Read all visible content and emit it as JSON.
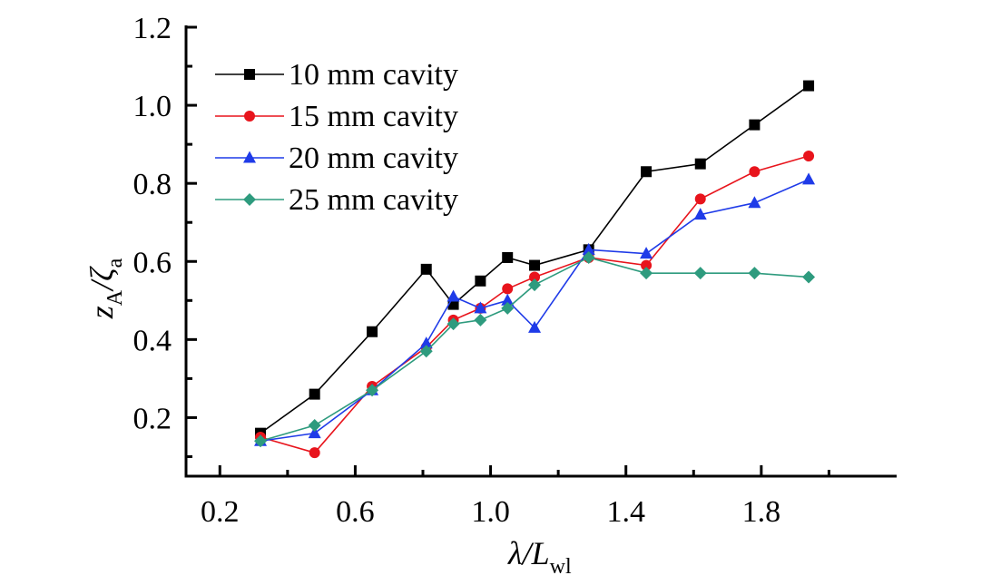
{
  "chart_data": {
    "type": "line",
    "xlabel": "λ/L_wl",
    "ylabel": "z_A/ζ_a",
    "xlabel_parts": {
      "main": "λ/L",
      "sub": "wl"
    },
    "ylabel_parts": {
      "main1": "z",
      "sub1": "A",
      "main2": "/ζ",
      "sub2": "a"
    },
    "xlim": [
      0.1,
      2.2
    ],
    "ylim": [
      0.05,
      1.2
    ],
    "xticks": [
      0.2,
      0.6,
      1.0,
      1.4,
      1.8
    ],
    "xtick_labels": [
      "0.2",
      "0.6",
      "1.0",
      "1.4",
      "1.8"
    ],
    "xminor": [
      0.4,
      0.8,
      1.2,
      1.6,
      2.0
    ],
    "yticks": [
      0.2,
      0.4,
      0.6,
      0.8,
      1.0,
      1.2
    ],
    "ytick_labels": [
      "0.2",
      "0.4",
      "0.6",
      "0.8",
      "1.0",
      "1.2"
    ],
    "yminor": [
      0.1,
      0.3,
      0.5,
      0.7,
      0.9,
      1.1
    ],
    "grid": false,
    "legend_position": "top-left",
    "series": [
      {
        "name": "10 mm cavity",
        "color": "#000000",
        "marker": "square",
        "x": [
          0.32,
          0.48,
          0.65,
          0.81,
          0.89,
          0.97,
          1.05,
          1.13,
          1.29,
          1.46,
          1.62,
          1.78,
          1.94
        ],
        "y": [
          0.16,
          0.26,
          0.42,
          0.58,
          0.49,
          0.55,
          0.61,
          0.59,
          0.63,
          0.83,
          0.85,
          0.95,
          1.05
        ]
      },
      {
        "name": "15 mm cavity",
        "color": "#e8141c",
        "marker": "circle",
        "x": [
          0.32,
          0.48,
          0.65,
          0.81,
          0.89,
          0.97,
          1.05,
          1.13,
          1.29,
          1.46,
          1.62,
          1.78,
          1.94
        ],
        "y": [
          0.15,
          0.11,
          0.28,
          0.38,
          0.45,
          0.48,
          0.53,
          0.56,
          0.61,
          0.59,
          0.76,
          0.83,
          0.87
        ]
      },
      {
        "name": "20 mm cavity",
        "color": "#1f3be8",
        "marker": "triangle",
        "x": [
          0.32,
          0.48,
          0.65,
          0.81,
          0.89,
          0.97,
          1.05,
          1.13,
          1.29,
          1.46,
          1.62,
          1.78,
          1.94
        ],
        "y": [
          0.14,
          0.16,
          0.27,
          0.39,
          0.51,
          0.48,
          0.5,
          0.43,
          0.63,
          0.62,
          0.72,
          0.75,
          0.81
        ]
      },
      {
        "name": "25 mm cavity",
        "color": "#2e9b7e",
        "marker": "diamond",
        "x": [
          0.32,
          0.48,
          0.65,
          0.81,
          0.89,
          0.97,
          1.05,
          1.13,
          1.29,
          1.46,
          1.62,
          1.78,
          1.94
        ],
        "y": [
          0.14,
          0.18,
          0.27,
          0.37,
          0.44,
          0.45,
          0.48,
          0.54,
          0.61,
          0.57,
          0.57,
          0.57,
          0.56
        ]
      }
    ]
  }
}
